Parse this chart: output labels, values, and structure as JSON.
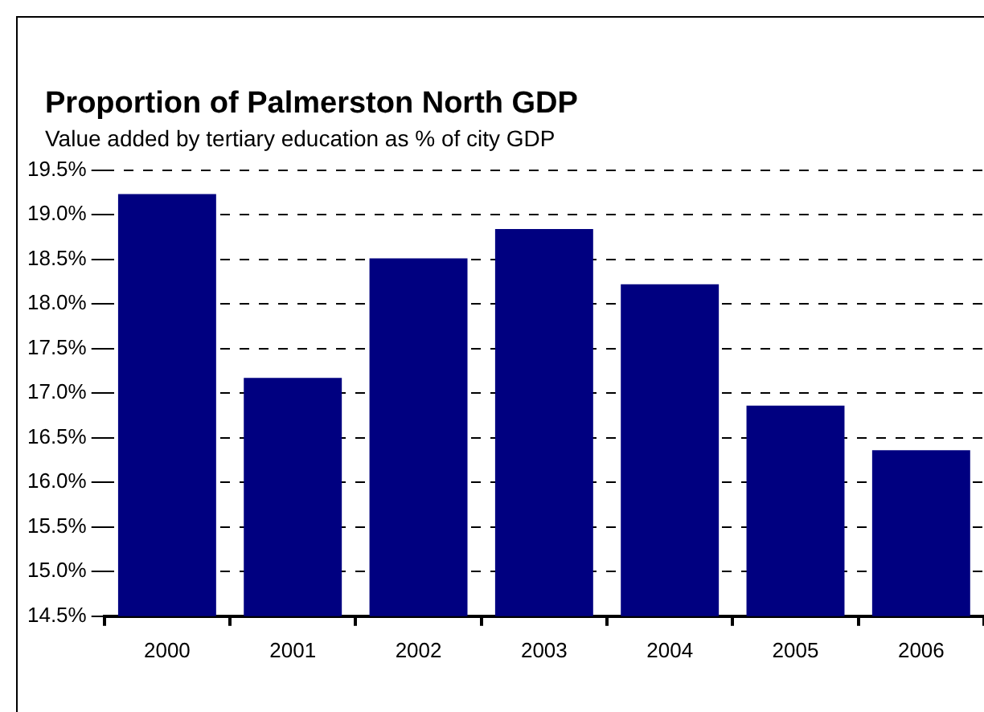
{
  "chart_data": {
    "type": "bar",
    "title": "Proportion of Palmerston North GDP",
    "subtitle": "Value added by tertiary education as % of city GDP",
    "categories": [
      "2000",
      "2001",
      "2002",
      "2003",
      "2004",
      "2005",
      "2006"
    ],
    "values": [
      19.23,
      17.17,
      18.51,
      18.84,
      18.22,
      16.86,
      16.36
    ],
    "color": "#000080",
    "ylim": [
      14.5,
      19.5
    ],
    "yticks": [
      {
        "value": 14.5,
        "label": "14.5%"
      },
      {
        "value": 15.0,
        "label": "15.0%"
      },
      {
        "value": 15.5,
        "label": "15.5%"
      },
      {
        "value": 16.0,
        "label": "16.0%"
      },
      {
        "value": 16.5,
        "label": "16.5%"
      },
      {
        "value": 17.0,
        "label": "17.0%"
      },
      {
        "value": 17.5,
        "label": "17.5%"
      },
      {
        "value": 18.0,
        "label": "18.0%"
      },
      {
        "value": 18.5,
        "label": "18.5%"
      },
      {
        "value": 19.0,
        "label": "19.0%"
      },
      {
        "value": 19.5,
        "label": "19.5%"
      }
    ],
    "grid": "y",
    "legend": false
  }
}
